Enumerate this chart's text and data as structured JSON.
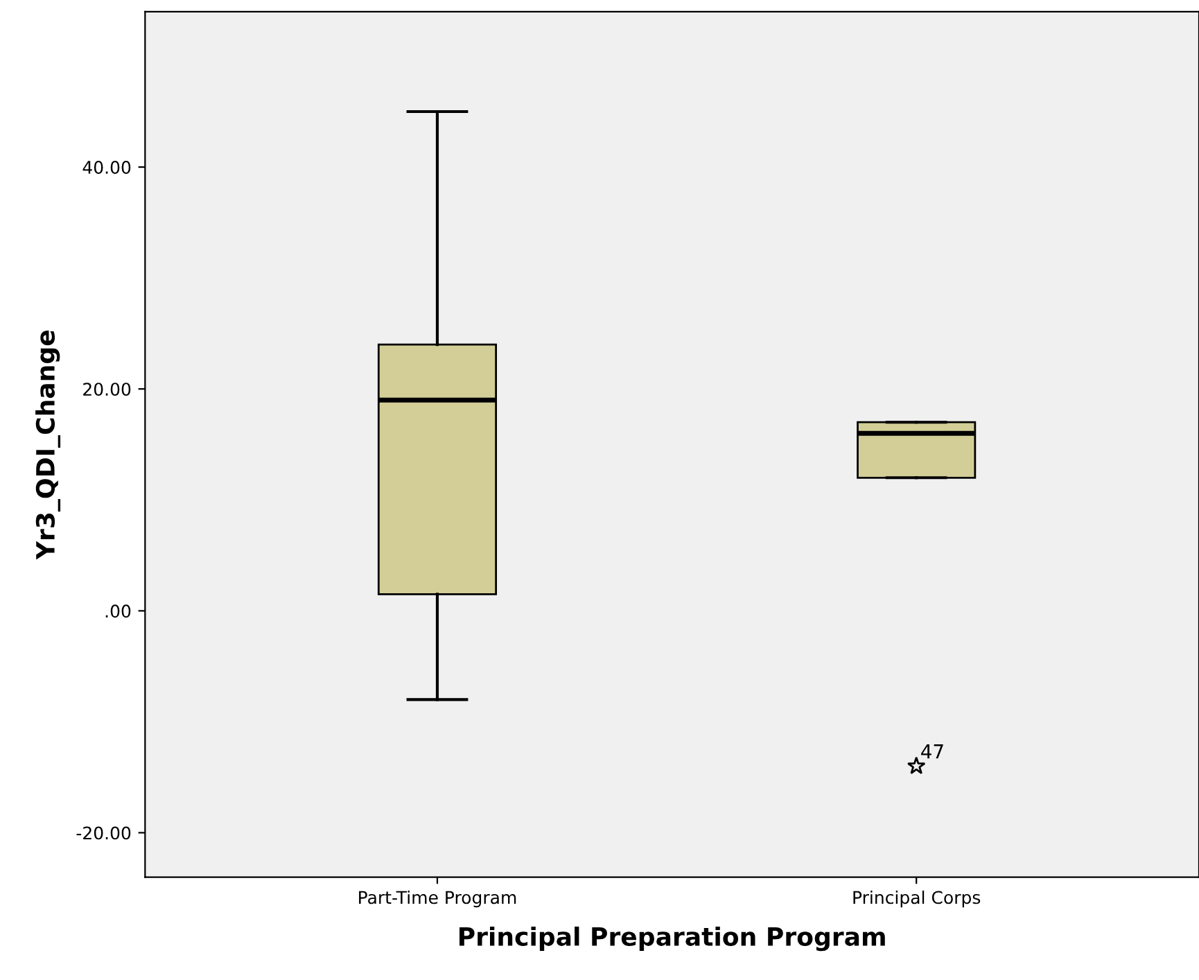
{
  "chart_data": {
    "type": "box",
    "xlabel": "Principal Preparation Program",
    "ylabel": "Yr3_QDI_Change",
    "categories": [
      "Part-Time Program",
      "Principal Corps"
    ],
    "boxes": [
      {
        "low": -8,
        "q1": 1.5,
        "median": 19,
        "q3": 24,
        "high": 45
      },
      {
        "low": 12,
        "q1": 12,
        "median": 16,
        "q3": 17,
        "high": 17,
        "outliers": [
          -14
        ]
      }
    ],
    "color": "#d3ce97",
    "marker": "star",
    "grid": false,
    "ylim": [
      -24,
      54
    ],
    "yticks": [
      {
        "value": -20,
        "label": "-20.00"
      },
      {
        "value": 0,
        "label": ".00"
      },
      {
        "value": 20,
        "label": "20.00"
      },
      {
        "value": 40,
        "label": "40.00"
      }
    ],
    "annotations": [
      "47"
    ]
  }
}
